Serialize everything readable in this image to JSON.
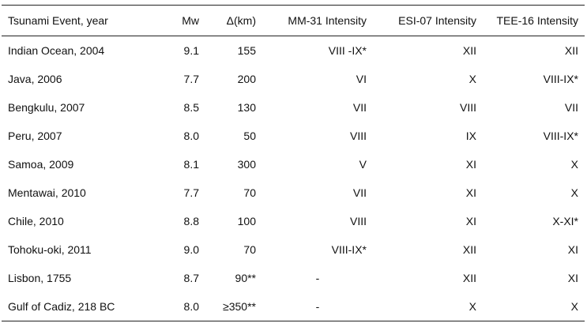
{
  "table": {
    "headers": {
      "event": "Tsunami Event, year",
      "mw": "Mw",
      "delta": "Δ(km)",
      "mm31": "MM-31 Intensity",
      "esi07": "ESI-07 Intensity",
      "tee16": "TEE-16 Intensity"
    },
    "rows": [
      {
        "event": "Indian Ocean, 2004",
        "mw": "9.1",
        "delta": "155",
        "mm31": "VIII -IX*",
        "esi07": "XII",
        "tee16": "XII"
      },
      {
        "event": "Java, 2006",
        "mw": "7.7",
        "delta": "200",
        "mm31": "VI",
        "esi07": "X",
        "tee16": "VIII-IX*"
      },
      {
        "event": "Bengkulu, 2007",
        "mw": "8.5",
        "delta": "130",
        "mm31": "VII",
        "esi07": "VIII",
        "tee16": "VII"
      },
      {
        "event": "Peru, 2007",
        "mw": "8.0",
        "delta": "50",
        "mm31": "VIII",
        "esi07": "IX",
        "tee16": "VIII-IX*"
      },
      {
        "event": "Samoa, 2009",
        "mw": "8.1",
        "delta": "300",
        "mm31": "V",
        "esi07": "XI",
        "tee16": "X"
      },
      {
        "event": "Mentawai, 2010",
        "mw": "7.7",
        "delta": "70",
        "mm31": "VII",
        "esi07": "XI",
        "tee16": "X"
      },
      {
        "event": "Chile, 2010",
        "mw": "8.8",
        "delta": "100",
        "mm31": "VIII",
        "esi07": "XI",
        "tee16": "X-XI*"
      },
      {
        "event": "Tohoku-oki, 2011",
        "mw": "9.0",
        "delta": "70",
        "mm31": "VIII-IX*",
        "esi07": "XII",
        "tee16": "XI"
      },
      {
        "event": "Lisbon, 1755",
        "mw": "8.7",
        "delta": "90**",
        "mm31": "-",
        "esi07": "XII",
        "tee16": "XI"
      },
      {
        "event": "Gulf of Cadiz, 218 BC",
        "mw": "8.0",
        "delta": "≥350**",
        "mm31": "-",
        "esi07": "X",
        "tee16": "X"
      }
    ]
  }
}
